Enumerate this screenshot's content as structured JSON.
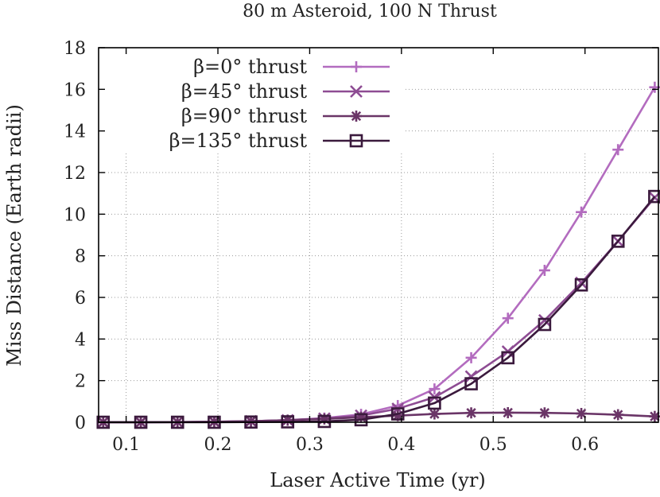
{
  "chart_data": {
    "type": "line",
    "title": "80 m Asteroid, 100 N Thrust",
    "xlabel": "Laser Active Time (yr)",
    "ylabel": "Miss Distance (Earth radii)",
    "xlim": [
      0.07,
      0.68
    ],
    "ylim": [
      0,
      18
    ],
    "xticks": [
      0.1,
      0.2,
      0.3,
      0.4,
      0.5,
      0.6
    ],
    "xtick_labels": [
      "0.1",
      "0.2",
      "0.3",
      "0.4",
      "0.5",
      "0.6"
    ],
    "yticks": [
      0,
      2,
      4,
      6,
      8,
      10,
      12,
      14,
      16,
      18
    ],
    "ytick_labels": [
      "0",
      "2",
      "4",
      "6",
      "8",
      "10",
      "12",
      "14",
      "16",
      "18"
    ],
    "grid": true,
    "legend_position": "top-left",
    "x": [
      0.075,
      0.116,
      0.156,
      0.196,
      0.236,
      0.276,
      0.316,
      0.356,
      0.396,
      0.436,
      0.476,
      0.516,
      0.556,
      0.596,
      0.636,
      0.676
    ],
    "series": [
      {
        "name": "β=0° thrust",
        "color": "#b36cbf",
        "marker": "plus",
        "values": [
          0.0,
          0.0,
          0.01,
          0.02,
          0.05,
          0.1,
          0.2,
          0.38,
          0.8,
          1.6,
          3.1,
          5.0,
          7.3,
          10.1,
          13.1,
          16.1
        ]
      },
      {
        "name": "β=45° thrust",
        "color": "#8e4c93",
        "marker": "x",
        "values": [
          0.0,
          0.0,
          0.01,
          0.02,
          0.05,
          0.1,
          0.18,
          0.32,
          0.65,
          1.2,
          2.2,
          3.4,
          4.9,
          6.7,
          8.7,
          10.8
        ]
      },
      {
        "name": "β=90° thrust",
        "color": "#6a3567",
        "marker": "asterisk",
        "values": [
          0.0,
          0.0,
          0.01,
          0.02,
          0.05,
          0.1,
          0.16,
          0.24,
          0.32,
          0.4,
          0.45,
          0.46,
          0.45,
          0.42,
          0.36,
          0.28
        ]
      },
      {
        "name": "β=135° thrust",
        "color": "#3b1a3d",
        "marker": "square",
        "values": [
          0.0,
          0.0,
          0.0,
          0.0,
          0.01,
          0.02,
          0.04,
          0.12,
          0.4,
          0.92,
          1.85,
          3.1,
          4.7,
          6.6,
          8.7,
          10.85
        ]
      }
    ]
  }
}
